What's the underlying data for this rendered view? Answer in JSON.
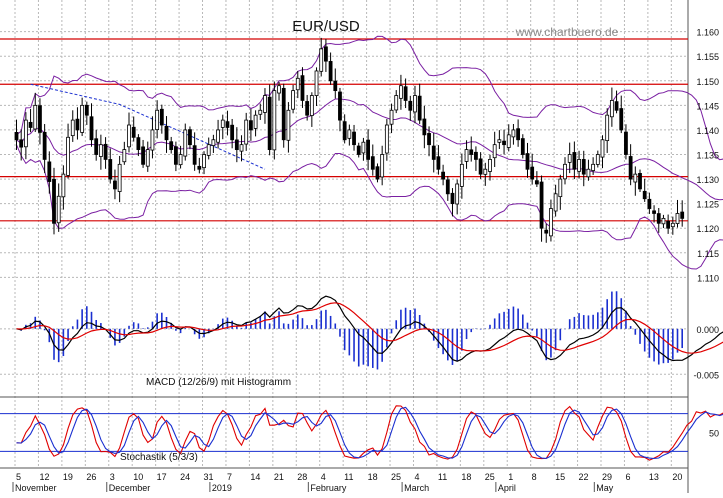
{
  "chart_data": {
    "type": "candlestick",
    "title": "EUR/USD",
    "watermark": "www.chartbuero.de",
    "colors": {
      "background": "#ffffff",
      "grid": "#b8b8b8",
      "support_resistance": "#d40000",
      "bollinger": "#7a1fa2",
      "candle": "#000000",
      "macd_line": "#000000",
      "signal_line": "#e00000",
      "histogram": "#1a2fd0",
      "stoch_k": "#e00000",
      "stoch_d": "#1a2fd0",
      "stoch_bounds": "#1a2fd0",
      "trendline": "#1a2fd0"
    },
    "grid": true,
    "price_panel": {
      "ylim": [
        1.106,
        1.164
      ],
      "yticks": [
        "1.110",
        "1.115",
        "1.120",
        "1.125",
        "1.130",
        "1.135",
        "1.140",
        "1.145",
        "1.150",
        "1.155",
        "1.160"
      ],
      "horizontal_levels": [
        1.1585,
        1.1493,
        1.1305,
        1.1215
      ],
      "trendline": [
        {
          "x": 3,
          "y": 1.1493
        },
        {
          "x": 22,
          "y": 1.1452
        },
        {
          "x": 53,
          "y": 1.132
        }
      ]
    },
    "macd_panel": {
      "label": "MACD (12/26/9) mit Histogramm",
      "ylim": [
        -0.0075,
        0.0035
      ],
      "yticks": [
        "0.000",
        "-0.005"
      ]
    },
    "stoch_panel": {
      "label": "Stochastik (5/3/3)",
      "ylim": [
        0,
        100
      ],
      "levels": [
        80,
        20
      ],
      "yticks": [
        "50"
      ]
    },
    "x_axis": {
      "day_ticks": [
        "5",
        "12",
        "19",
        "26",
        "3",
        "10",
        "17",
        "24",
        "31",
        "7",
        "14",
        "21",
        "28",
        "4",
        "11",
        "18",
        "25",
        "4",
        "11",
        "18",
        "25",
        "1",
        "8",
        "15",
        "22",
        "29",
        "6",
        "13",
        "20"
      ],
      "months": [
        {
          "label": "November",
          "tick": 0
        },
        {
          "label": "December",
          "tick": 4
        },
        {
          "label": "2019",
          "tick": 8.4
        },
        {
          "label": "February",
          "tick": 12.6
        },
        {
          "label": "March",
          "tick": 16.6
        },
        {
          "label": "April",
          "tick": 20.6
        },
        {
          "label": "May",
          "tick": 24.8
        }
      ]
    },
    "closes": [
      1.138,
      1.1365,
      1.142,
      1.1405,
      1.145,
      1.1395,
      1.134,
      1.1295,
      1.121,
      1.1265,
      1.131,
      1.1385,
      1.142,
      1.14,
      1.145,
      1.143,
      1.138,
      1.135,
      1.137,
      1.134,
      1.13,
      1.128,
      1.133,
      1.136,
      1.141,
      1.1385,
      1.136,
      1.133,
      1.136,
      1.14,
      1.144,
      1.141,
      1.138,
      1.136,
      1.133,
      1.135,
      1.14,
      1.137,
      1.133,
      1.132,
      1.135,
      1.137,
      1.138,
      1.14,
      1.142,
      1.1405,
      1.138,
      1.136,
      1.137,
      1.142,
      1.14,
      1.143,
      1.144,
      1.147,
      1.136,
      1.148,
      1.149,
      1.138,
      1.144,
      1.148,
      1.1505,
      1.146,
      1.143,
      1.147,
      1.152,
      1.1565,
      1.154,
      1.15,
      1.148,
      1.142,
      1.138,
      1.14,
      1.137,
      1.135,
      1.1375,
      1.134,
      1.132,
      1.13,
      1.135,
      1.141,
      1.144,
      1.147,
      1.149,
      1.146,
      1.144,
      1.147,
      1.142,
      1.139,
      1.137,
      1.134,
      1.132,
      1.13,
      1.127,
      1.125,
      1.129,
      1.133,
      1.136,
      1.135,
      1.134,
      1.131,
      1.132,
      1.134,
      1.137,
      1.138,
      1.137,
      1.139,
      1.14,
      1.138,
      1.135,
      1.132,
      1.13,
      1.129,
      1.12,
      1.119,
      1.124,
      1.127,
      1.13,
      1.133,
      1.135,
      1.132,
      1.134,
      1.131,
      1.132,
      1.133,
      1.135,
      1.138,
      1.143,
      1.146,
      1.144,
      1.14,
      1.135,
      1.13,
      1.131,
      1.128,
      1.126,
      1.124,
      1.123,
      1.121,
      1.122,
      1.12,
      1.121,
      1.123,
      1.122,
      1.125,
      1.126,
      1.128,
      1.127,
      1.129,
      1.128,
      1.13,
      1.132,
      1.131,
      1.129,
      1.13,
      1.128,
      1.125,
      1.126,
      1.124,
      1.122,
      1.118,
      1.115,
      1.113,
      1.116,
      1.119,
      1.121,
      1.118,
      1.12
    ]
  }
}
